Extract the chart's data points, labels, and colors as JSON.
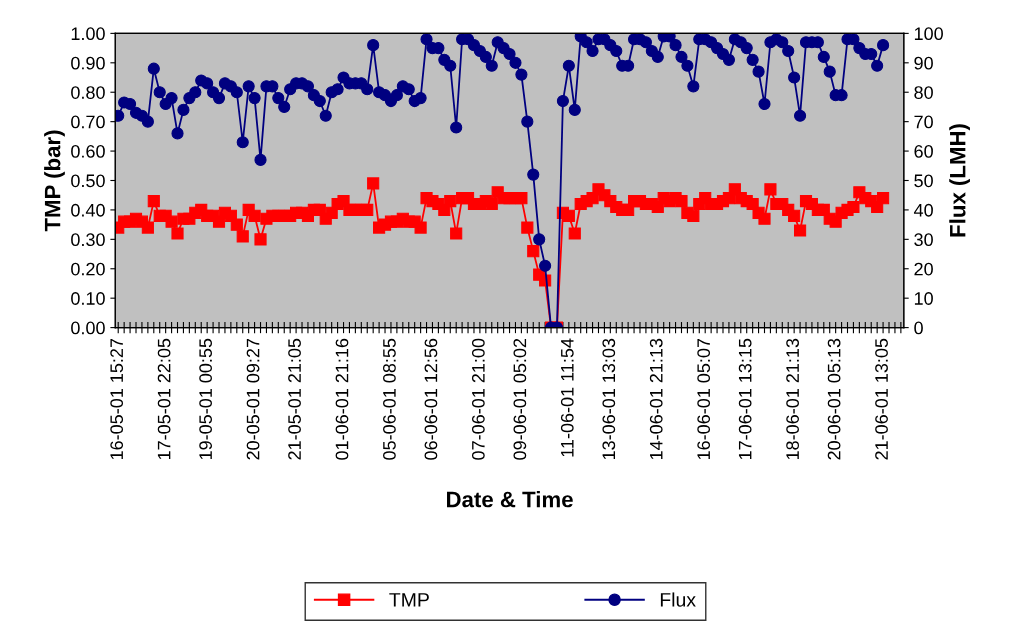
{
  "chart_data": {
    "type": "line",
    "xlabel": "Date & Time",
    "ylabel": "TMP (bar)",
    "y2label": "Flux (LMH)",
    "categories": [
      "16-05-01 15:27",
      null,
      null,
      null,
      null,
      null,
      null,
      null,
      "17-05-01 22:05",
      null,
      null,
      null,
      null,
      null,
      null,
      "19-05-01 00:55",
      null,
      null,
      null,
      null,
      null,
      null,
      null,
      "20-05-01 09:27",
      null,
      null,
      null,
      null,
      null,
      null,
      "21-05-01 21:05",
      null,
      null,
      null,
      null,
      null,
      null,
      null,
      "01-06-01 21:16",
      null,
      null,
      null,
      null,
      null,
      null,
      null,
      "05-06-01 08:55",
      null,
      null,
      null,
      null,
      null,
      null,
      "06-06-01 12:56",
      null,
      null,
      null,
      null,
      null,
      null,
      null,
      "07-06-01 21:00",
      null,
      null,
      null,
      null,
      null,
      null,
      "09-06-01 05:02",
      null,
      null,
      null,
      null,
      null,
      null,
      null,
      "11-06-01 11:54",
      null,
      null,
      null,
      null,
      null,
      null,
      "13-06-01 13:03",
      null,
      null,
      null,
      null,
      null,
      null,
      null,
      "14-06-01 21:13",
      null,
      null,
      null,
      null,
      null,
      null,
      null,
      "16-06-01 05:07",
      null,
      null,
      null,
      null,
      null,
      null,
      "17-06-01 13:15",
      null,
      null,
      null,
      null,
      null,
      null,
      null,
      "18-06-01 21:13",
      null,
      null,
      null,
      null,
      null,
      null,
      "20-06-01 05:13",
      null,
      null,
      null,
      null,
      null,
      null,
      null,
      "21-06-01 13:05",
      null,
      null,
      null
    ],
    "series": [
      {
        "name": "TMP",
        "color": "#ff0000",
        "marker": "square",
        "values": [
          0.34,
          0.36,
          0.36,
          0.37,
          0.36,
          0.34,
          0.43,
          0.38,
          0.38,
          0.36,
          0.32,
          0.37,
          0.37,
          0.39,
          0.4,
          0.38,
          0.38,
          0.36,
          0.39,
          0.38,
          0.35,
          0.31,
          0.4,
          0.38,
          0.3,
          0.37,
          0.38,
          0.38,
          0.38,
          0.38,
          0.39,
          0.39,
          0.38,
          0.4,
          0.4,
          0.37,
          0.39,
          0.42,
          0.43,
          0.4,
          0.4,
          0.4,
          0.4,
          0.49,
          0.34,
          0.35,
          0.36,
          0.36,
          0.37,
          0.36,
          0.36,
          0.34,
          0.44,
          0.43,
          0.42,
          0.4,
          0.43,
          0.32,
          0.44,
          0.44,
          0.42,
          0.42,
          0.43,
          0.42,
          0.46,
          0.44,
          0.44,
          0.44,
          0.44,
          0.34,
          0.26,
          0.18,
          0.16,
          0,
          0,
          0.39,
          0.38,
          0.32,
          0.42,
          0.43,
          0.44,
          0.47,
          0.45,
          0.43,
          0.41,
          0.4,
          0.4,
          0.43,
          0.43,
          0.42,
          0.42,
          0.41,
          0.44,
          0.43,
          0.44,
          0.43,
          0.39,
          0.38,
          0.42,
          0.44,
          0.42,
          0.42,
          0.43,
          0.44,
          0.47,
          0.44,
          0.43,
          0.42,
          0.39,
          0.37,
          0.47,
          0.42,
          0.42,
          0.4,
          0.38,
          0.33,
          0.43,
          0.42,
          0.4,
          0.4,
          0.37,
          0.36,
          0.39,
          0.4,
          0.41,
          0.46,
          0.44,
          0.43,
          0.41,
          0.44,
          null,
          null,
          null
        ]
      },
      {
        "name": "Flux",
        "color": "#000080",
        "marker": "circle",
        "axis": "y2",
        "values": [
          72,
          76.5,
          76,
          73,
          72,
          70,
          88,
          80,
          76,
          78,
          66,
          74,
          78,
          80,
          84,
          83,
          80,
          78,
          83,
          82,
          80,
          63,
          82,
          78,
          57,
          82,
          82,
          78,
          75,
          81,
          83,
          83,
          82,
          79,
          77,
          72,
          80,
          81,
          85,
          83,
          83,
          83,
          81,
          96,
          80,
          79,
          77,
          79,
          82,
          81,
          77,
          78,
          98,
          95,
          95,
          91,
          89,
          68,
          98,
          98,
          96,
          94,
          92,
          89,
          97,
          95,
          93,
          90,
          86,
          70,
          52,
          30,
          21,
          0,
          0,
          77,
          89,
          74,
          99,
          97,
          94,
          98,
          98,
          96,
          94,
          89,
          89,
          98,
          98,
          97,
          94,
          92,
          99,
          99,
          96,
          92,
          89,
          82,
          98,
          98,
          97,
          95,
          93,
          91,
          98,
          97,
          95,
          91,
          87,
          76,
          97,
          98,
          97,
          94,
          85,
          72,
          97,
          97,
          97,
          92,
          87,
          79,
          79,
          98,
          98,
          95,
          93,
          93,
          89,
          96,
          null,
          null,
          null
        ]
      }
    ],
    "ylim": [
      0,
      1
    ],
    "yticks": [
      {
        "value": 0,
        "label": "0.00"
      },
      {
        "value": 0.1,
        "label": "0.10"
      },
      {
        "value": 0.2,
        "label": "0.20"
      },
      {
        "value": 0.3,
        "label": "0.30"
      },
      {
        "value": 0.4,
        "label": "0.40"
      },
      {
        "value": 0.5,
        "label": "0.50"
      },
      {
        "value": 0.6,
        "label": "0.60"
      },
      {
        "value": 0.7,
        "label": "0.70"
      },
      {
        "value": 0.8,
        "label": "0.80"
      },
      {
        "value": 0.9,
        "label": "0.90"
      },
      {
        "value": 1,
        "label": "1.00"
      }
    ],
    "y2lim": [
      0,
      100
    ],
    "y2ticks": [
      0,
      10,
      20,
      30,
      40,
      50,
      60,
      70,
      80,
      90,
      100
    ],
    "grid": false,
    "legend": "bottom",
    "line_style": "solid"
  }
}
